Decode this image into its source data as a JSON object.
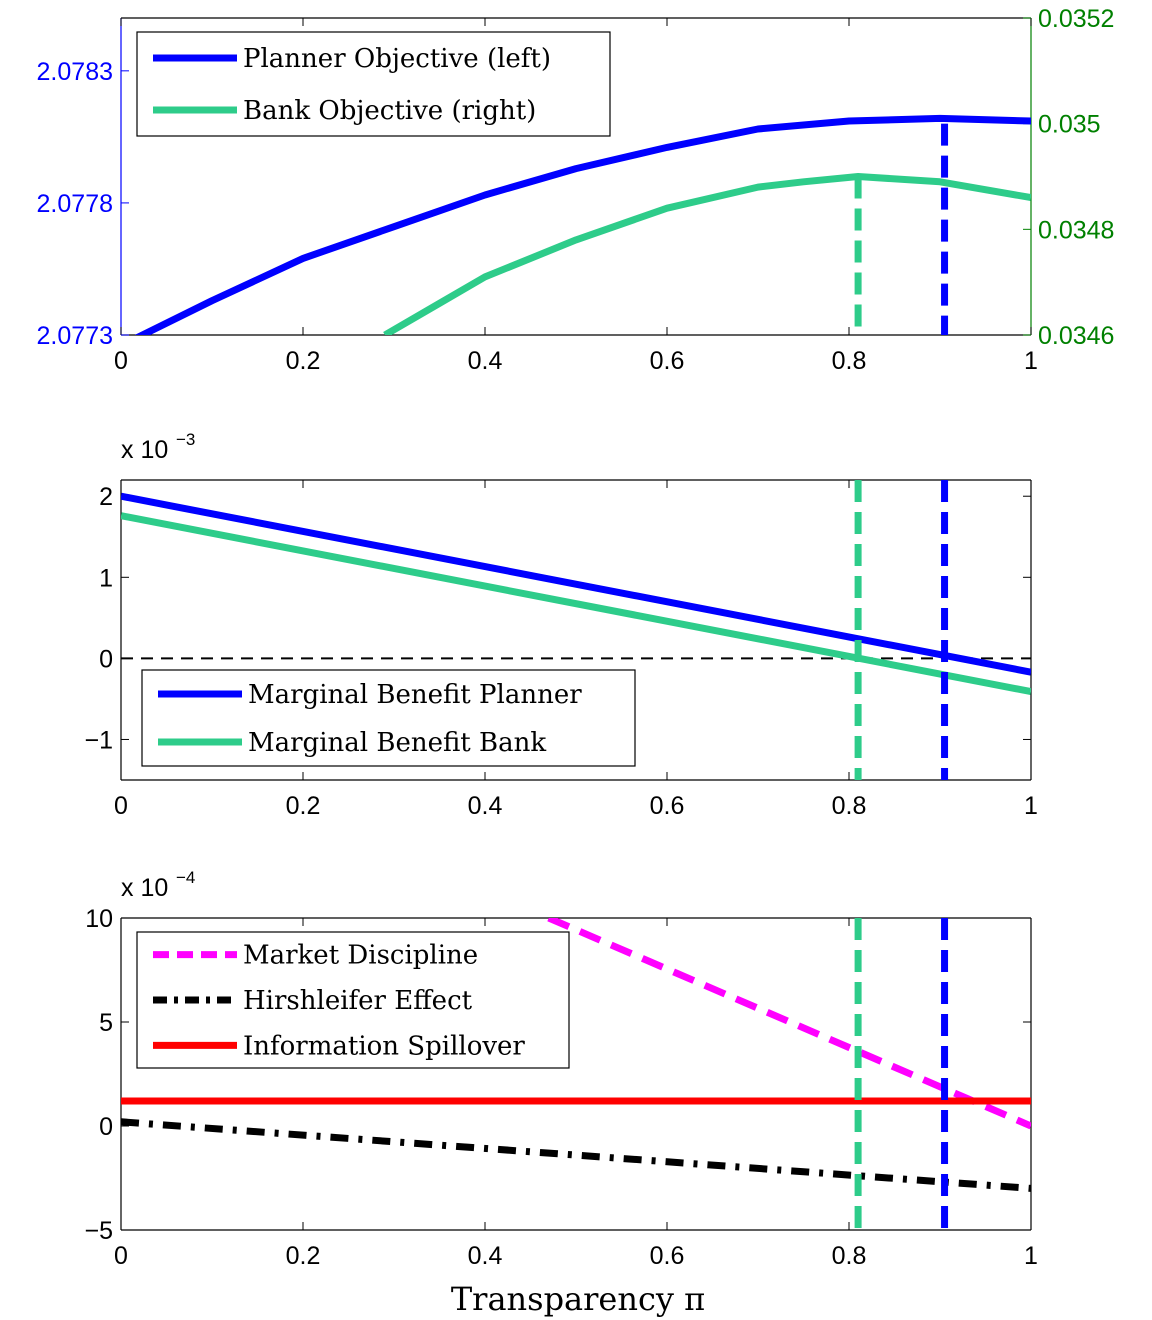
{
  "chart_data": [
    {
      "type": "line",
      "yaxis_left": {
        "ticks": [
          2.0773,
          2.0778,
          2.0783
        ],
        "tick_labels": [
          "2.0773",
          "2.0778",
          "2.0783"
        ],
        "ylim": [
          2.0773,
          2.0785
        ],
        "color": "#0000ff"
      },
      "yaxis_right": {
        "ticks": [
          0.0346,
          0.0348,
          0.035,
          0.0352
        ],
        "tick_labels": [
          "0.0346",
          "0.0348",
          "0.035",
          "0.0352"
        ],
        "ylim": [
          0.0346,
          0.0352
        ],
        "color": "#008000"
      },
      "xaxis": {
        "ticks": [
          0,
          0.2,
          0.4,
          0.6,
          0.8,
          1
        ],
        "tick_labels": [
          "0",
          "0.2",
          "0.4",
          "0.6",
          "0.8",
          "1"
        ],
        "xlim": [
          0,
          1
        ]
      },
      "legend": {
        "placement": "top-left"
      },
      "series": [
        {
          "name": "Planner Objective (left)",
          "axis": "left",
          "color": "#0000ff",
          "style": "solid",
          "x": [
            0,
            0.1,
            0.2,
            0.3,
            0.4,
            0.5,
            0.6,
            0.7,
            0.8,
            0.9,
            1.0
          ],
          "y": [
            2.07726,
            2.07743,
            2.07759,
            2.07771,
            2.07783,
            2.07793,
            2.07801,
            2.07808,
            2.07811,
            2.07812,
            2.07811
          ]
        },
        {
          "name": "Bank Objective (right)",
          "axis": "right",
          "color": "#2ecc8a",
          "style": "solid",
          "x": [
            0.29,
            0.35,
            0.4,
            0.5,
            0.6,
            0.7,
            0.75,
            0.81,
            0.9,
            1.0
          ],
          "y": [
            0.0346,
            0.03466,
            0.03471,
            0.03478,
            0.03484,
            0.03488,
            0.03489,
            0.0349,
            0.03489,
            0.03486
          ]
        }
      ],
      "vlines": [
        {
          "x": 0.81,
          "color": "#2ecc8a",
          "y_from": 0.0346,
          "y_to": 0.0349,
          "axis": "right"
        },
        {
          "x": 0.905,
          "color": "#0000ff",
          "y_from": 2.0773,
          "y_to": 2.0781,
          "axis": "left"
        }
      ]
    },
    {
      "type": "line",
      "yaxis_left": {
        "ticks": [
          -1,
          0,
          1,
          2
        ],
        "tick_labels": [
          "−1",
          "0",
          "1",
          "2"
        ],
        "ylim": [
          -1.5,
          2.2
        ],
        "multiplier_base": "x 10",
        "multiplier_exp": "−3"
      },
      "xaxis": {
        "ticks": [
          0,
          0.2,
          0.4,
          0.6,
          0.8,
          1
        ],
        "tick_labels": [
          "0",
          "0.2",
          "0.4",
          "0.6",
          "0.8",
          "1"
        ],
        "xlim": [
          0,
          1
        ]
      },
      "legend": {
        "placement": "bottom-left"
      },
      "series": [
        {
          "name": "Marginal Benefit Planner",
          "color": "#0000ff",
          "style": "solid",
          "x": [
            0,
            1
          ],
          "y": [
            2.0,
            -0.17
          ]
        },
        {
          "name": "Marginal Benefit Bank",
          "color": "#2ecc8a",
          "style": "solid",
          "x": [
            0,
            1
          ],
          "y": [
            1.76,
            -0.41
          ]
        }
      ],
      "hlines": [
        {
          "y": 0,
          "color": "#000000",
          "style": "dashed"
        }
      ],
      "vlines": [
        {
          "x": 0.81,
          "color": "#2ecc8a"
        },
        {
          "x": 0.905,
          "color": "#0000ff"
        }
      ]
    },
    {
      "type": "line",
      "yaxis_left": {
        "ticks": [
          -5,
          0,
          5,
          10
        ],
        "tick_labels": [
          "−5",
          "0",
          "5",
          "10"
        ],
        "ylim": [
          -5,
          10
        ],
        "multiplier_base": "x 10",
        "multiplier_exp": "−4"
      },
      "xaxis": {
        "ticks": [
          0,
          0.2,
          0.4,
          0.6,
          0.8,
          1
        ],
        "tick_labels": [
          "0",
          "0.2",
          "0.4",
          "0.6",
          "0.8",
          "1"
        ],
        "xlim": [
          0,
          1
        ]
      },
      "xlabel": "Transparency π",
      "legend": {
        "placement": "top-left"
      },
      "series": [
        {
          "name": "Market Discipline",
          "color": "#ff00ff",
          "style": "dashed",
          "x": [
            0.47,
            1.0
          ],
          "y": [
            10.0,
            0.0
          ]
        },
        {
          "name": "Hirshleifer Effect",
          "color": "#000000",
          "style": "dashdot",
          "x": [
            0,
            1
          ],
          "y": [
            0.2,
            -3.0
          ]
        },
        {
          "name": "Information Spillover",
          "color": "#ff0000",
          "style": "solid",
          "x": [
            0,
            1
          ],
          "y": [
            1.2,
            1.2
          ]
        }
      ],
      "vlines": [
        {
          "x": 0.81,
          "color": "#2ecc8a"
        },
        {
          "x": 0.905,
          "color": "#0000ff"
        }
      ]
    }
  ]
}
